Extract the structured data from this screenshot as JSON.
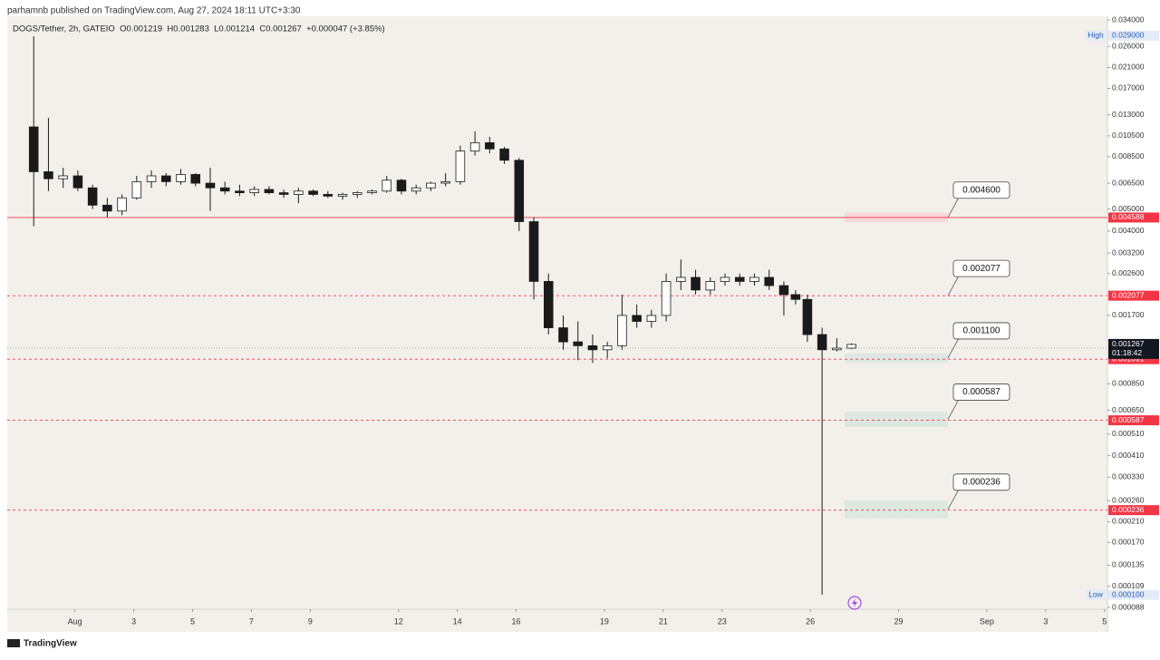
{
  "chart_data": {
    "type": "candlestick",
    "publisher_line": "parhamnb published on TradingView.com, Aug 27, 2024 18:11 UTC+3:30",
    "symbol_line": "DOGS/Tether, 2h, GATEIO  O0.001219  H0.001283  L0.001214  C0.001267  +0.000047 (+3.85%)",
    "brand": "TradingView",
    "log_scale": true,
    "up_color": "#ffffff",
    "down_color": "#1a1a1a",
    "xlim": [
      -1.3,
      36.1
    ],
    "xticks": [
      {
        "value": 1,
        "label": "Aug"
      },
      3,
      5,
      7,
      9,
      12,
      14,
      16,
      19,
      21,
      23,
      26,
      29,
      {
        "value": 32,
        "label": "Sep"
      },
      {
        "value": 34,
        "label": "3"
      },
      {
        "value": 36,
        "label": "5"
      }
    ],
    "ylim": [
      8.64e-05,
      0.0353
    ],
    "yticks": [
      {
        "value": 0.034,
        "label": "0.034000"
      },
      {
        "value": 0.026,
        "label": "0.026000"
      },
      {
        "value": 0.021,
        "label": "0.021000"
      },
      {
        "value": 0.017,
        "label": "0.017000"
      },
      {
        "value": 0.013,
        "label": "0.013000"
      },
      {
        "value": 0.0105,
        "label": "0.010500"
      },
      {
        "value": 0.0085,
        "label": "0.008500"
      },
      {
        "value": 0.0065,
        "label": "0.006500"
      },
      {
        "value": 0.005,
        "label": "0.005000"
      },
      {
        "value": 0.004,
        "label": "0.004000"
      },
      {
        "value": 0.0032,
        "label": "0.003200"
      },
      {
        "value": 0.0026,
        "label": "0.002600"
      },
      {
        "value": 0.0017,
        "label": "0.001700"
      },
      {
        "value": 0.00085,
        "label": "0.000850"
      },
      {
        "value": 0.00065,
        "label": "0.000650"
      },
      {
        "value": 0.00051,
        "label": "0.000510"
      },
      {
        "value": 0.00041,
        "label": "0.000410"
      },
      {
        "value": 0.00033,
        "label": "0.000330"
      },
      {
        "value": 0.00026,
        "label": "0.000260"
      },
      {
        "value": 0.00021,
        "label": "0.000210"
      },
      {
        "value": 0.00017,
        "label": "0.000170"
      },
      {
        "value": 0.000135,
        "label": "0.000135"
      },
      {
        "value": 0.000109,
        "label": "0.000109"
      },
      {
        "value": 8.8e-05,
        "label": "0.000088"
      }
    ],
    "x": [
      -0.4,
      0.1,
      0.6,
      1.1,
      1.6,
      2.1,
      2.6,
      3.1,
      3.6,
      4.1,
      4.6,
      5.1,
      5.6,
      6.1,
      6.6,
      7.1,
      7.6,
      8.1,
      8.6,
      9.1,
      9.6,
      10.1,
      10.6,
      11.1,
      11.6,
      12.1,
      12.6,
      13.1,
      13.6,
      14.1,
      14.6,
      15.1,
      15.6,
      16.1,
      16.6,
      17.1,
      17.6,
      18.1,
      18.6,
      19.1,
      19.6,
      20.1,
      20.6,
      21.1,
      21.6,
      22.1,
      22.6,
      23.1,
      23.6,
      24.1,
      24.6,
      25.1,
      25.5,
      25.9,
      26.4,
      26.9,
      27.4
    ],
    "open": [
      0.0115,
      0.0073,
      0.0068,
      0.007,
      0.0062,
      0.0052,
      0.0049,
      0.0056,
      0.0066,
      0.007,
      0.0066,
      0.0071,
      0.0065,
      0.0062,
      0.006,
      0.0059,
      0.0061,
      0.0059,
      0.0058,
      0.006,
      0.0058,
      0.0057,
      0.0058,
      0.0059,
      0.006,
      0.0067,
      0.006,
      0.0062,
      0.0065,
      0.0066,
      0.009,
      0.0098,
      0.0092,
      0.0082,
      0.0044,
      0.0024,
      0.0015,
      0.0013,
      0.00125,
      0.0012,
      0.00125,
      0.0017,
      0.0016,
      0.0017,
      0.0024,
      0.0025,
      0.0022,
      0.0024,
      0.0025,
      0.0024,
      0.0025,
      0.0023,
      0.0021,
      0.002,
      0.0014,
      0.0012,
      0.00122
    ],
    "high": [
      0.0288,
      0.0126,
      0.0076,
      0.0074,
      0.0064,
      0.0056,
      0.0058,
      0.007,
      0.0074,
      0.0072,
      0.0075,
      0.0072,
      0.0076,
      0.0066,
      0.0064,
      0.0063,
      0.0063,
      0.0061,
      0.0062,
      0.0061,
      0.006,
      0.0059,
      0.006,
      0.0061,
      0.007,
      0.0068,
      0.0064,
      0.0066,
      0.0072,
      0.0095,
      0.011,
      0.0104,
      0.0094,
      0.0084,
      0.0046,
      0.0026,
      0.0017,
      0.0016,
      0.0014,
      0.0013,
      0.0021,
      0.0019,
      0.0018,
      0.0026,
      0.003,
      0.0027,
      0.0025,
      0.0026,
      0.0026,
      0.0026,
      0.0027,
      0.0024,
      0.0022,
      0.0021,
      0.0015,
      0.00135,
      0.00128
    ],
    "low": [
      0.0042,
      0.006,
      0.0062,
      0.006,
      0.005,
      0.0046,
      0.0047,
      0.0055,
      0.0062,
      0.0063,
      0.0064,
      0.0063,
      0.0049,
      0.0058,
      0.0057,
      0.0057,
      0.0058,
      0.0056,
      0.0053,
      0.0057,
      0.0056,
      0.0055,
      0.0056,
      0.0058,
      0.0059,
      0.0058,
      0.0058,
      0.006,
      0.0063,
      0.0064,
      0.0086,
      0.0088,
      0.0079,
      0.004,
      0.002,
      0.0014,
      0.0012,
      0.00108,
      0.00105,
      0.0011,
      0.0012,
      0.0015,
      0.0015,
      0.0016,
      0.0022,
      0.0021,
      0.0021,
      0.0023,
      0.0023,
      0.0023,
      0.0022,
      0.0017,
      0.0019,
      0.0013,
      0.0001,
      0.00118,
      0.00121
    ],
    "close": [
      0.0073,
      0.0068,
      0.007,
      0.0062,
      0.0052,
      0.0049,
      0.0056,
      0.0066,
      0.007,
      0.0066,
      0.0071,
      0.0065,
      0.0062,
      0.006,
      0.0059,
      0.0061,
      0.0059,
      0.0058,
      0.006,
      0.0058,
      0.0057,
      0.0058,
      0.0059,
      0.006,
      0.0067,
      0.006,
      0.0062,
      0.0065,
      0.0066,
      0.009,
      0.0098,
      0.0092,
      0.0082,
      0.0044,
      0.0024,
      0.0015,
      0.0013,
      0.00125,
      0.0012,
      0.00125,
      0.0017,
      0.0016,
      0.0017,
      0.0024,
      0.0025,
      0.0022,
      0.0024,
      0.0025,
      0.0024,
      0.0025,
      0.0023,
      0.0021,
      0.002,
      0.0014,
      0.0012,
      0.00122,
      0.001267
    ],
    "horizontal_lines": [
      {
        "value": 0.004588,
        "style": "solid",
        "color": "#f23645"
      },
      {
        "value": 0.002077,
        "style": "dashed",
        "color": "#f23645"
      },
      {
        "value": 0.001091,
        "style": "dashed",
        "color": "#f23645"
      },
      {
        "value": 0.000587,
        "style": "dashed",
        "color": "#f23645"
      },
      {
        "value": 0.000236,
        "style": "dashed",
        "color": "#f23645"
      }
    ],
    "zones": [
      {
        "label": "0.004600",
        "low": 0.00438,
        "high": 0.00482,
        "color": "#f8d7da"
      },
      {
        "label": "0.002077",
        "low": 0.002077,
        "high": 0.002077,
        "color": "none"
      },
      {
        "label": "0.001100",
        "low": 0.00105,
        "high": 0.00116,
        "color": "#dde8e1"
      },
      {
        "label": "0.000587",
        "low": 0.000548,
        "high": 0.000641,
        "color": "#dde8e1"
      },
      {
        "label": "0.000236",
        "low": 0.000217,
        "high": 0.000261,
        "color": "#dde8e1"
      }
    ],
    "last_price": {
      "value": 0.001267,
      "countdown": "01:18:42"
    },
    "price_line": {
      "value": 0.001221
    },
    "high_marker": {
      "text": "High",
      "value": 0.029,
      "label": "0.029000"
    },
    "low_marker": {
      "text": "Low",
      "value": 0.0001,
      "label": "0.000100"
    }
  }
}
